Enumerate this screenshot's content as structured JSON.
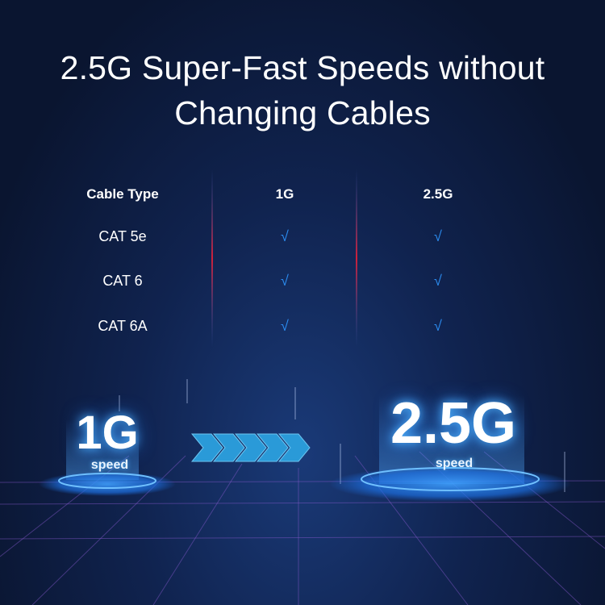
{
  "headline": {
    "line1": "2.5G Super-Fast Speeds without",
    "line2": "Changing Cables"
  },
  "table": {
    "headers": [
      "Cable Type",
      "1G",
      "2.5G"
    ],
    "rows": [
      {
        "cable": "CAT 5e",
        "g1": "√",
        "g25": "√"
      },
      {
        "cable": "CAT 6",
        "g1": "√",
        "g25": "√"
      },
      {
        "cable": "CAT 6A",
        "g1": "√",
        "g25": "√"
      }
    ]
  },
  "speeds": {
    "left": {
      "value": "1G",
      "label": "speed"
    },
    "right": {
      "value": "2.5G",
      "label": "speed"
    }
  },
  "colors": {
    "background": "#0b1530",
    "check": "#2b8cf0",
    "glow": "#4fb4ff",
    "arrow": "#2a9ad8",
    "accent_red": "#d0203a"
  }
}
